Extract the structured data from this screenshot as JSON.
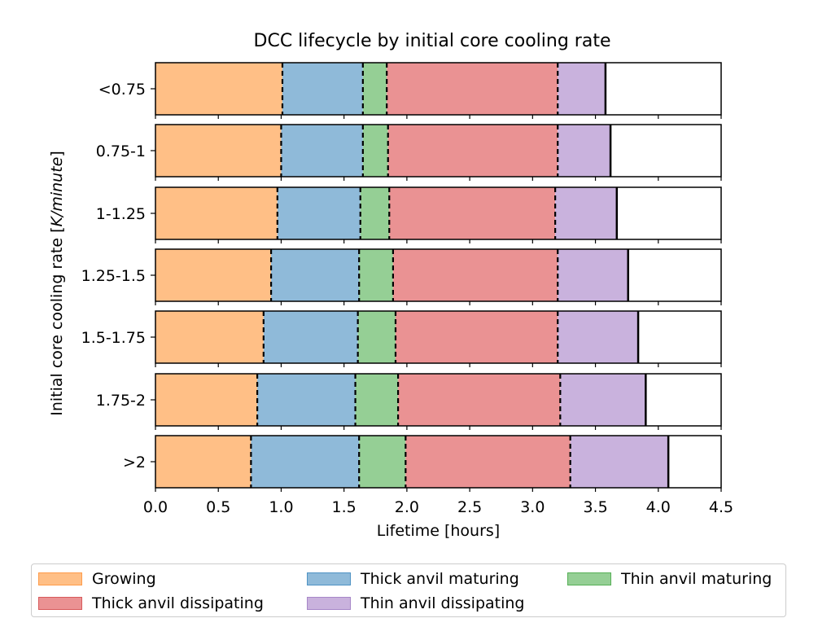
{
  "chart_data": {
    "type": "bar",
    "orientation": "horizontal",
    "stacked": true,
    "title": "DCC lifecycle by initial core cooling rate",
    "xlabel": "Lifetime [hours]",
    "ylabel": "Initial core cooling rate [K/minute]",
    "xlim": [
      0,
      4.5
    ],
    "xticks": [
      "0.0",
      "0.5",
      "1.0",
      "1.5",
      "2.0",
      "2.5",
      "3.0",
      "3.5",
      "4.0",
      "4.5"
    ],
    "categories": [
      "<0.75",
      "0.75-1",
      "1-1.25",
      "1.25-1.5",
      "1.5-1.75",
      "1.75-2",
      ">2"
    ],
    "phases": [
      "Growing",
      "Thick anvil maturing",
      "Thin anvil maturing",
      "Thick anvil dissipating",
      "Thin anvil dissipating"
    ],
    "colors": [
      "#ffbf86",
      "#8fbad9",
      "#95cf95",
      "#ea9293",
      "#c9b2dd"
    ],
    "edge_colors": [
      "#ff9c4a",
      "#4f93c4",
      "#57b057",
      "#d85a5b",
      "#a787c8"
    ],
    "boundaries": [
      [
        1.01,
        1.65,
        1.84,
        3.2,
        3.58
      ],
      [
        1.0,
        1.65,
        1.85,
        3.2,
        3.62
      ],
      [
        0.97,
        1.63,
        1.86,
        3.18,
        3.67
      ],
      [
        0.92,
        1.62,
        1.89,
        3.2,
        3.76
      ],
      [
        0.86,
        1.61,
        1.91,
        3.2,
        3.84
      ],
      [
        0.81,
        1.59,
        1.93,
        3.22,
        3.9
      ],
      [
        0.76,
        1.62,
        1.99,
        3.3,
        4.08
      ]
    ],
    "legend": {
      "position": "bottom",
      "columns": 3,
      "entries": [
        "Growing",
        "Thick anvil maturing",
        "Thin anvil maturing",
        "Thick anvil dissipating",
        "Thin anvil dissipating"
      ]
    }
  }
}
